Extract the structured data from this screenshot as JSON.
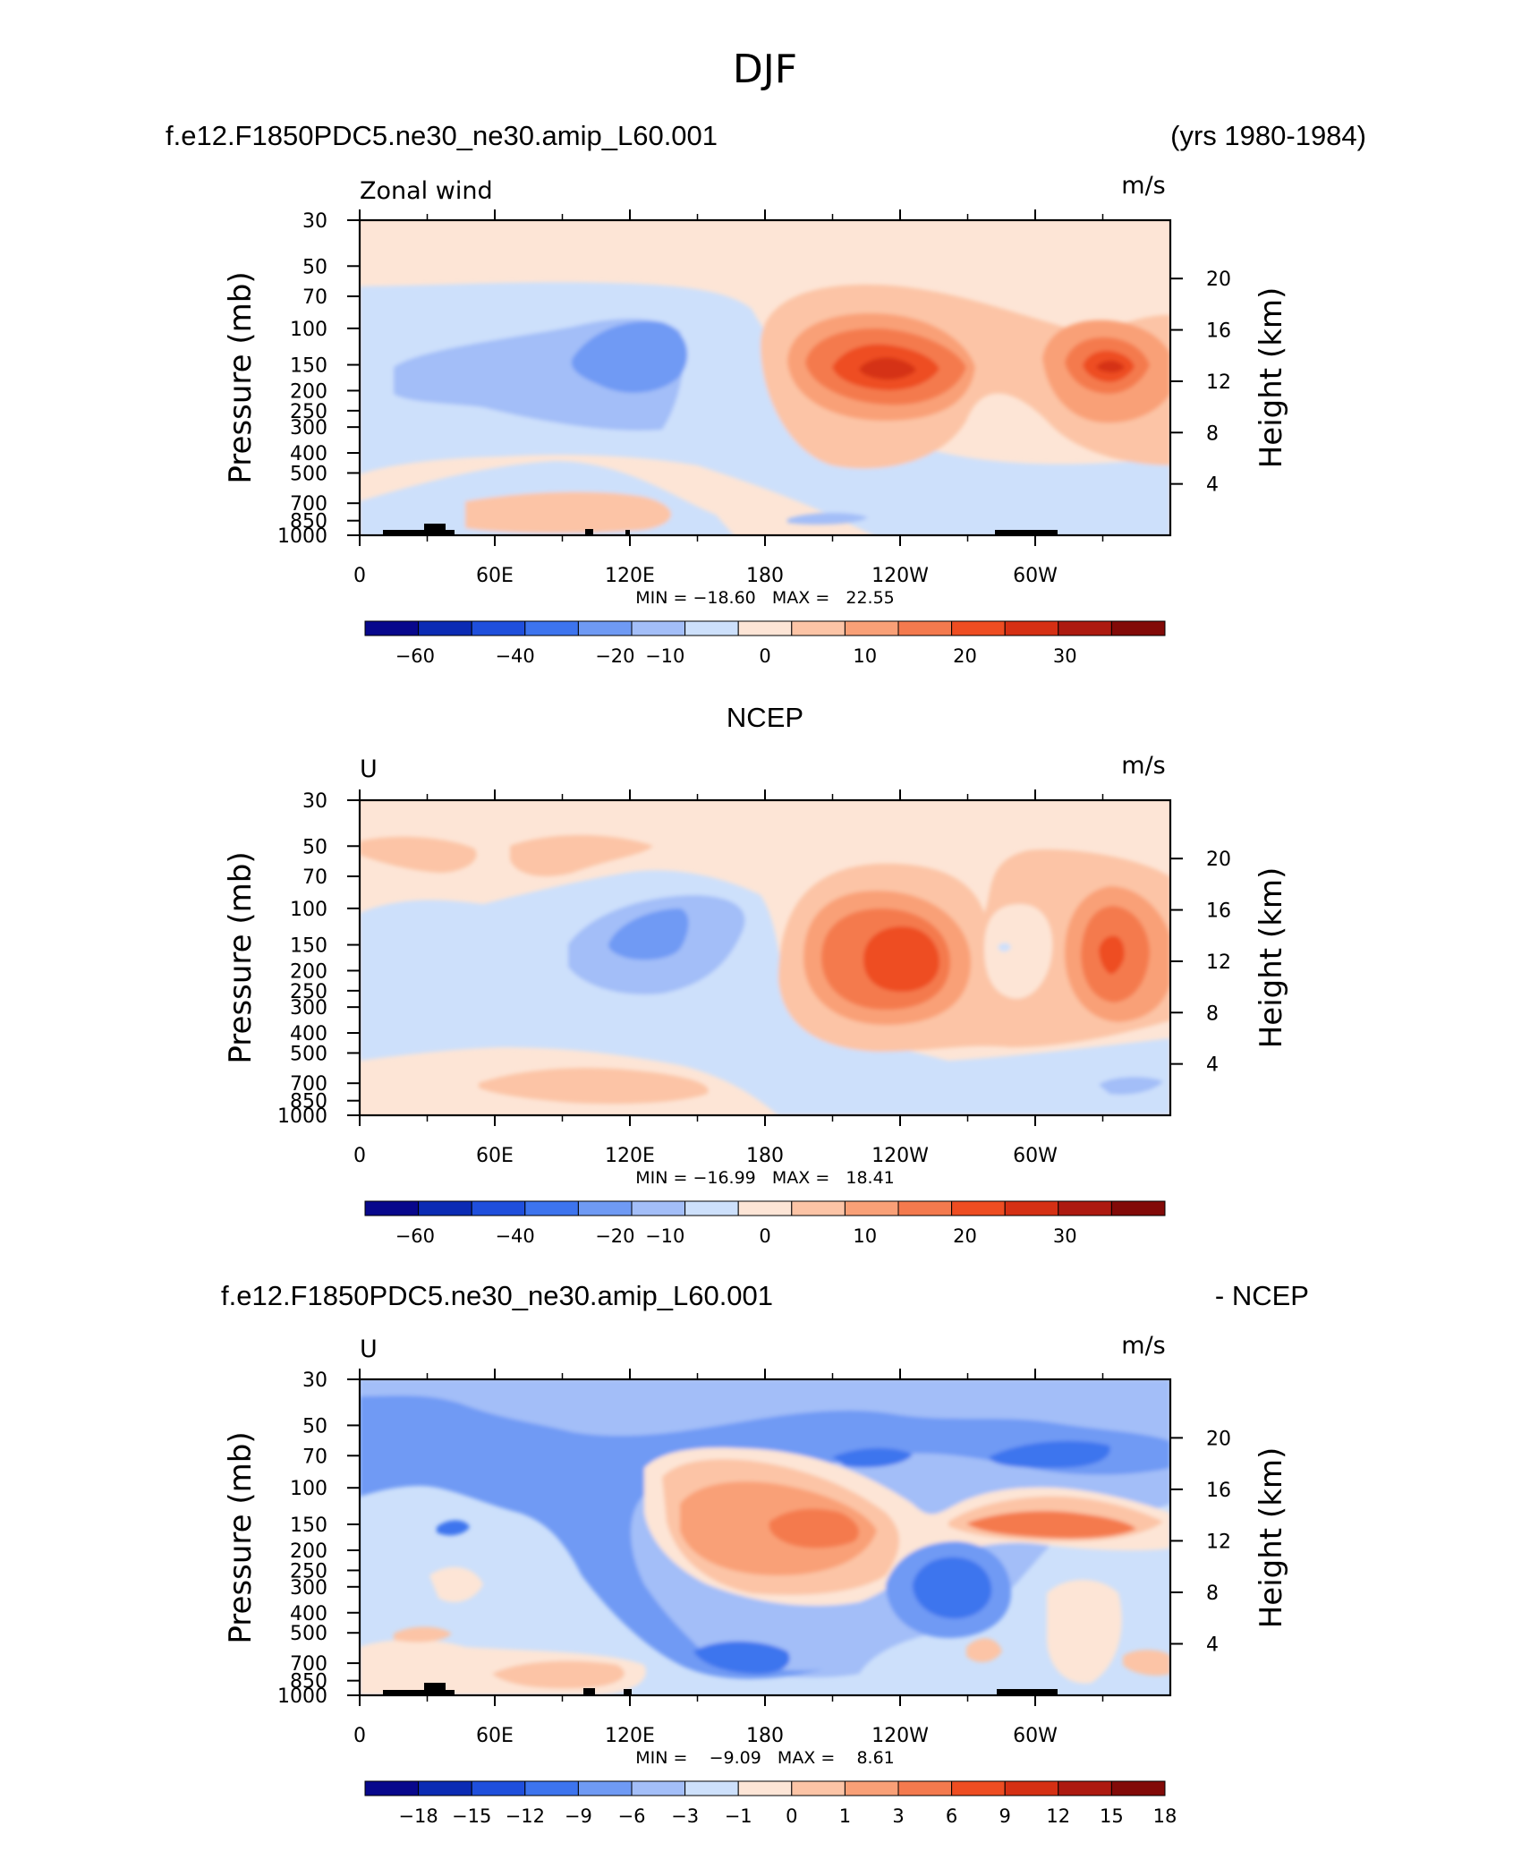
{
  "page": {
    "title": "DJF"
  },
  "colors": {
    "main_scale": [
      "#08088c",
      "#0b2bb4",
      "#1f4fdc",
      "#3d74ee",
      "#6f9af4",
      "#a3bef8",
      "#cde0fb",
      "#fde5d6",
      "#fcc4a6",
      "#f9a077",
      "#f47a4e",
      "#ee4d22",
      "#d53014",
      "#ad1a10",
      "#820a08"
    ],
    "diff_scale": [
      "#08088c",
      "#0b2bb4",
      "#1f4fdc",
      "#3d74ee",
      "#6f9af4",
      "#a3bef8",
      "#cde0fb",
      "#fde5d6",
      "#fcc4a6",
      "#f9a077",
      "#f47a4e",
      "#ee4d22",
      "#d53014",
      "#ad1a10",
      "#820a08"
    ]
  },
  "chart_data": [
    {
      "type": "heatmap",
      "panel_title_left": "f.e12.F1850PDC5.ne30_ne30.amip_L60.001",
      "panel_title_right": "(yrs 1980-1984)",
      "variable_label": "Zonal wind",
      "units": "m/s",
      "ylabel": "Pressure (mb)",
      "ylabel_right": "Height (km)",
      "x_ticks": [
        "0",
        "60E",
        "120E",
        "180",
        "120W",
        "60W"
      ],
      "y_ticks": [
        "30",
        "50",
        "70",
        "100",
        "150",
        "200",
        "250",
        "300",
        "400",
        "500",
        "700",
        "850",
        "1000"
      ],
      "y_ticks_right": [
        "20",
        "16",
        "12",
        "8",
        "4"
      ],
      "stats": "MIN = −18.60   MAX =   22.55",
      "min": -18.6,
      "max": 22.55,
      "colorbar_labels": [
        "−60",
        "−40",
        "−20",
        "−10",
        "0",
        "10",
        "20",
        "30"
      ]
    },
    {
      "type": "heatmap",
      "panel_title_center": "NCEP",
      "variable_label": "U",
      "units": "m/s",
      "ylabel": "Pressure (mb)",
      "ylabel_right": "Height (km)",
      "x_ticks": [
        "0",
        "60E",
        "120E",
        "180",
        "120W",
        "60W"
      ],
      "y_ticks": [
        "30",
        "50",
        "70",
        "100",
        "150",
        "200",
        "250",
        "300",
        "400",
        "500",
        "700",
        "850",
        "1000"
      ],
      "y_ticks_right": [
        "20",
        "16",
        "12",
        "8",
        "4"
      ],
      "stats": "MIN = −16.99   MAX =   18.41",
      "min": -16.99,
      "max": 18.41,
      "colorbar_labels": [
        "−60",
        "−40",
        "−20",
        "−10",
        "0",
        "10",
        "20",
        "30"
      ]
    },
    {
      "type": "heatmap",
      "panel_title_left": "f.e12.F1850PDC5.ne30_ne30.amip_L60.001",
      "panel_title_right": "- NCEP",
      "variable_label": "U",
      "units": "m/s",
      "ylabel": "Pressure (mb)",
      "ylabel_right": "Height (km)",
      "x_ticks": [
        "0",
        "60E",
        "120E",
        "180",
        "120W",
        "60W"
      ],
      "y_ticks": [
        "30",
        "50",
        "70",
        "100",
        "150",
        "200",
        "250",
        "300",
        "400",
        "500",
        "700",
        "850",
        "1000"
      ],
      "y_ticks_right": [
        "20",
        "16",
        "12",
        "8",
        "4"
      ],
      "stats": "MIN =    −9.09   MAX =    8.61",
      "min": -9.09,
      "max": 8.61,
      "colorbar_labels": [
        "−18",
        "−15",
        "−12",
        "−9",
        "−6",
        "−3",
        "−1",
        "0",
        "1",
        "3",
        "6",
        "9",
        "12",
        "15",
        "18"
      ]
    }
  ]
}
